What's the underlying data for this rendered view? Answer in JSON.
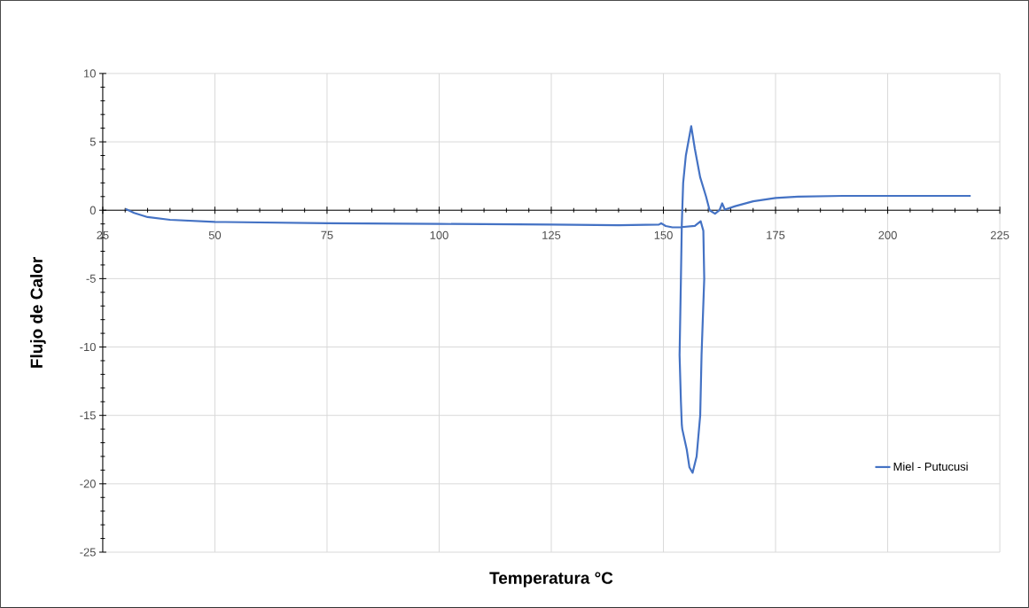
{
  "chart_data": {
    "type": "line",
    "xlabel": "Temperatura °C",
    "ylabel": "Flujo de Calor",
    "xlim": [
      25,
      225
    ],
    "ylim": [
      -25,
      10
    ],
    "xticks": [
      25,
      50,
      75,
      100,
      125,
      150,
      175,
      200,
      225
    ],
    "yticks": [
      -25,
      -20,
      -15,
      -10,
      -5,
      0,
      5,
      10
    ],
    "grid": true,
    "legend": "bottom right",
    "marker": "none",
    "line_style": "solid",
    "series": [
      {
        "name": "Miel - Putucusi",
        "color": "#4472c4",
        "x": [
          30.1,
          32,
          35,
          40,
          50,
          75,
          100,
          125,
          140,
          149,
          149.5,
          150.5,
          152,
          153.5,
          157,
          158.3,
          158.9,
          159.1,
          158.5,
          158.2,
          157.4,
          156.5,
          155.8,
          155.2,
          154.2,
          154.1,
          153.9,
          153.6,
          153.9,
          154.1,
          154.4,
          155,
          156.2,
          157,
          158.2,
          159.5,
          160.3,
          161.5,
          162.5,
          163.1,
          163.7,
          166,
          170,
          175,
          180,
          190,
          200,
          218.5
        ],
        "values": [
          0.1,
          -0.2,
          -0.5,
          -0.7,
          -0.85,
          -0.95,
          -1.0,
          -1.05,
          -1.1,
          -1.05,
          -0.95,
          -1.15,
          -1.25,
          -1.25,
          -1.15,
          -0.8,
          -1.5,
          -5,
          -10.6,
          -15,
          -18,
          -19.2,
          -18.8,
          -17.5,
          -16,
          -15.7,
          -14,
          -10.6,
          -5,
          -1,
          2,
          4,
          6.15,
          4.5,
          2.4,
          1,
          0,
          -0.25,
          0,
          0.5,
          0.05,
          0.3,
          0.65,
          0.9,
          1.0,
          1.05,
          1.05,
          1.05
        ]
      }
    ]
  }
}
